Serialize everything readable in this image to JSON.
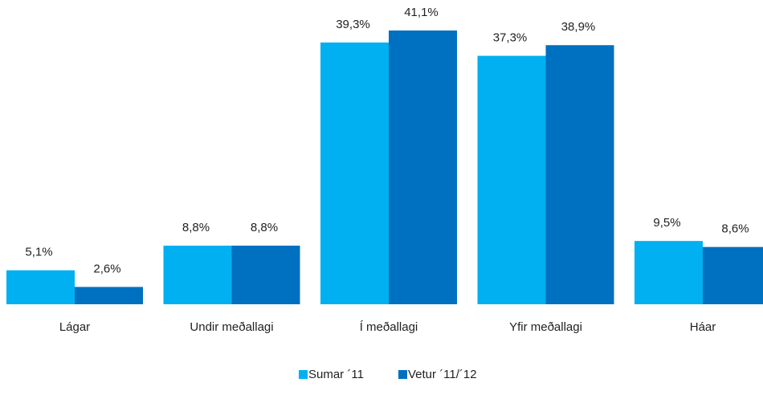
{
  "chart_data": {
    "type": "bar",
    "categories": [
      "Lágar",
      "Undir meðallagi",
      "Í meðallagi",
      "Yfir meðallagi",
      "Háar"
    ],
    "series": [
      {
        "name": "Sumar ´11",
        "color": "#00b0f0",
        "values": [
          5.1,
          8.8,
          39.3,
          37.3,
          9.5
        ],
        "value_labels": [
          "5,1%",
          "8,8%",
          "39,3%",
          "37,3%",
          "9,5%"
        ]
      },
      {
        "name": "Vetur ´11/´12",
        "color": "#0070c0",
        "values": [
          2.6,
          8.8,
          41.1,
          38.9,
          8.6
        ],
        "value_labels": [
          "2,6%",
          "8,8%",
          "41,1%",
          "38,9%",
          "8,6%"
        ]
      }
    ],
    "legend": "bottom"
  }
}
